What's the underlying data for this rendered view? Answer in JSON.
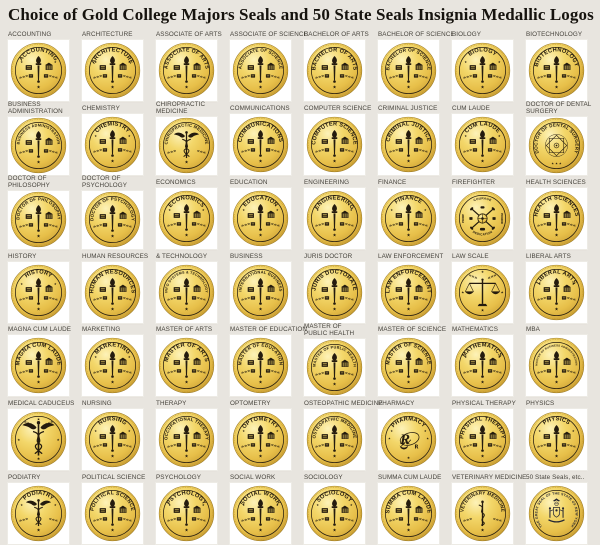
{
  "title": "Choice of Gold College Majors Seals and 50 State Seals Insignia Medallic Logos",
  "colors": {
    "background": "#e8e5df",
    "tile": "#ffffff",
    "label": "#46433c",
    "title": "#16130e",
    "gold_highlight": "#fdf2b8",
    "gold_mid": "#f3d76a",
    "gold": "#e7bf49",
    "gold_dark": "#c59a31",
    "rim": "#9a7822",
    "emblem": "#241b0e",
    "state_emblem": "#262733"
  },
  "grid": {
    "columns": 8,
    "rows": 7
  },
  "cells": [
    {
      "label": "ACCOUNTING",
      "seal_text": "ACCOUNTING",
      "variant": "standard"
    },
    {
      "label": "ARCHITECTURE",
      "seal_text": "ARCHITECTURE",
      "variant": "standard"
    },
    {
      "label": "ASSOCIATE OF ARTS",
      "seal_text": "ASSOCIATE OF ARTS",
      "variant": "standard"
    },
    {
      "label": "ASSOCIATE OF SCIENCE",
      "seal_text": "ASSOCIATE OF SCIENCE",
      "variant": "standard"
    },
    {
      "label": "BACHELOR OF ARTS",
      "seal_text": "BACHELOR OF ARTS",
      "variant": "standard"
    },
    {
      "label": "BACHELOR OF SCIENCE",
      "seal_text": "BACHELOR OF SCIENCE",
      "variant": "standard"
    },
    {
      "label": "BIOLOGY",
      "seal_text": "BIOLOGY",
      "variant": "standard"
    },
    {
      "label": "BIOTECHNOLOGY",
      "seal_text": "BIOTECHNOLOGY",
      "variant": "standard"
    },
    {
      "label": "BUSINESS\nADMINISTRATION",
      "seal_text": "BUSINESS ADMINISTRATION",
      "variant": "standard"
    },
    {
      "label": "CHEMISTRY",
      "seal_text": "CHEMISTRY",
      "variant": "standard"
    },
    {
      "label": "CHIROPRACTIC\nMEDICINE",
      "seal_text": "CHIROPRACTIC MEDICINE",
      "variant": "caduceus"
    },
    {
      "label": "COMMUNICATIONS",
      "seal_text": "COMMUNICATIONS",
      "variant": "standard"
    },
    {
      "label": "COMPUTER SCIENCE",
      "seal_text": "COMPUTER SCIENCE",
      "variant": "standard"
    },
    {
      "label": "CRIMINAL JUSTICE",
      "seal_text": "CRIMINAL JUSTICE",
      "variant": "standard"
    },
    {
      "label": "CUM LAUDE",
      "seal_text": "CUM LAUDE",
      "variant": "standard"
    },
    {
      "label": "DOCTOR OF DENTAL\nSURGERY",
      "seal_text": "DOCTOR OF DENTAL SURGERY",
      "variant": "ornate"
    },
    {
      "label": "DOCTOR OF\nPHILOSOPHY",
      "seal_text": "DOCTOR OF PHILOSOPHY",
      "variant": "standard"
    },
    {
      "label": "DOCTOR OF\nPSYCHOLOGY",
      "seal_text": "DOCTOR OF PSYCHOLOGY",
      "variant": "standard"
    },
    {
      "label": "ECONOMICS",
      "seal_text": "ECONOMICS",
      "variant": "standard"
    },
    {
      "label": "EDUCATION",
      "seal_text": "EDUCATION",
      "variant": "standard"
    },
    {
      "label": "ENGINEERING",
      "seal_text": "ENGINEERING",
      "variant": "standard"
    },
    {
      "label": "FINANCE",
      "seal_text": "FINANCE",
      "variant": "standard"
    },
    {
      "label": "FIREFIGHTER",
      "variant": "axes",
      "words": {
        "top": "COURAGE",
        "bottom": "DEDICATION",
        "left": "PRIDE",
        "right": "HONOR"
      }
    },
    {
      "label": "HEALTH SCIENCES",
      "seal_text": "HEALTH SCIENCES",
      "variant": "standard"
    },
    {
      "label": "HISTORY",
      "seal_text": "HISTORY",
      "variant": "standard"
    },
    {
      "label": "HUMAN RESOURCES",
      "seal_text": "HUMAN RESOURCES",
      "variant": "standard"
    },
    {
      "label": "& TECHNOLOGY",
      "seal_text": "INFO SYSTEMS & TECHNOLOGY",
      "variant": "standard"
    },
    {
      "label": "BUSINESS",
      "seal_text": "INTERNATIONAL BUSINESS",
      "variant": "standard"
    },
    {
      "label": "JURIS DOCTOR",
      "seal_text": "JURIS DOCTORATE",
      "variant": "standard"
    },
    {
      "label": "LAW ENFORCEMENT",
      "seal_text": "LAW ENFORCEMENT",
      "variant": "standard"
    },
    {
      "label": "LAW SCALE",
      "variant": "scale"
    },
    {
      "label": "LIBERAL ARTS",
      "seal_text": "LIBERAL ARTS",
      "variant": "standard"
    },
    {
      "label": "MAGNA CUM LAUDE",
      "seal_text": "MAGNA CUM LAUDE",
      "variant": "standard"
    },
    {
      "label": "MARKETING",
      "seal_text": "MARKETING",
      "variant": "standard"
    },
    {
      "label": "MASTER OF ARTS",
      "seal_text": "MASTER OF ARTS",
      "variant": "standard"
    },
    {
      "label": "MASTER OF EDUCATION",
      "seal_text": "MASTER OF EDUCATION",
      "variant": "standard"
    },
    {
      "label": "MASTER OF\nPUBLIC HEALTH",
      "seal_text": "MASTER OF PUBLIC HEALTH",
      "variant": "standard"
    },
    {
      "label": "MASTER OF SCIENCE",
      "seal_text": "MASTER OF SCIENCE",
      "variant": "standard"
    },
    {
      "label": "MATHEMATICS",
      "seal_text": "MATHEMATICS",
      "variant": "standard"
    },
    {
      "label": "MBA",
      "seal_text": "MASTER OF BUSINESS ADMINISTRATION",
      "variant": "standard"
    },
    {
      "label": "MEDICAL CADUCEUS",
      "variant": "caduceus-plain"
    },
    {
      "label": "NURSING",
      "seal_text": "NURSING",
      "variant": "standard"
    },
    {
      "label": "THERAPY",
      "seal_text": "OCCUPATIONAL THERAPY",
      "variant": "standard"
    },
    {
      "label": "OPTOMETRY",
      "seal_text": "OPTOMETRY",
      "variant": "standard"
    },
    {
      "label": "OSTEOPATHIC MEDICINE",
      "seal_text": "OSTEOPATHIC MEDICINE",
      "variant": "standard"
    },
    {
      "label": "PHARMACY",
      "seal_text": "PHARMACY",
      "variant": "rx"
    },
    {
      "label": "PHYSICAL THERAPY",
      "seal_text": "PHYSICAL THERAPY",
      "variant": "standard"
    },
    {
      "label": "PHYSICS",
      "seal_text": "PHYSICS",
      "variant": "standard"
    },
    {
      "label": "PODIATRY",
      "seal_text": "PODIATRY",
      "variant": "caduceus"
    },
    {
      "label": "POLITICAL SCIENCE",
      "seal_text": "POLITICAL SCIENCE",
      "variant": "standard"
    },
    {
      "label": "PSYCHOLOGY",
      "seal_text": "PSYCHOLOGY",
      "variant": "standard"
    },
    {
      "label": "SOCIAL WORK",
      "seal_text": "SOCIAL WORK",
      "variant": "standard"
    },
    {
      "label": "SOCIOLOGY",
      "seal_text": "SOCIOLOGY",
      "variant": "standard"
    },
    {
      "label": "SUMMA CUM LAUDE",
      "seal_text": "SUMMA CUM LAUDE",
      "variant": "standard"
    },
    {
      "label": "VETERINARY MEDICINE",
      "seal_text": "VETERINARY MEDICINE",
      "variant": "asclepius"
    },
    {
      "label": "50 State Seals, etc..",
      "seal_text": "THE GREAT SEAL OF THE STATE OF NEW YORK",
      "variant": "state"
    }
  ]
}
